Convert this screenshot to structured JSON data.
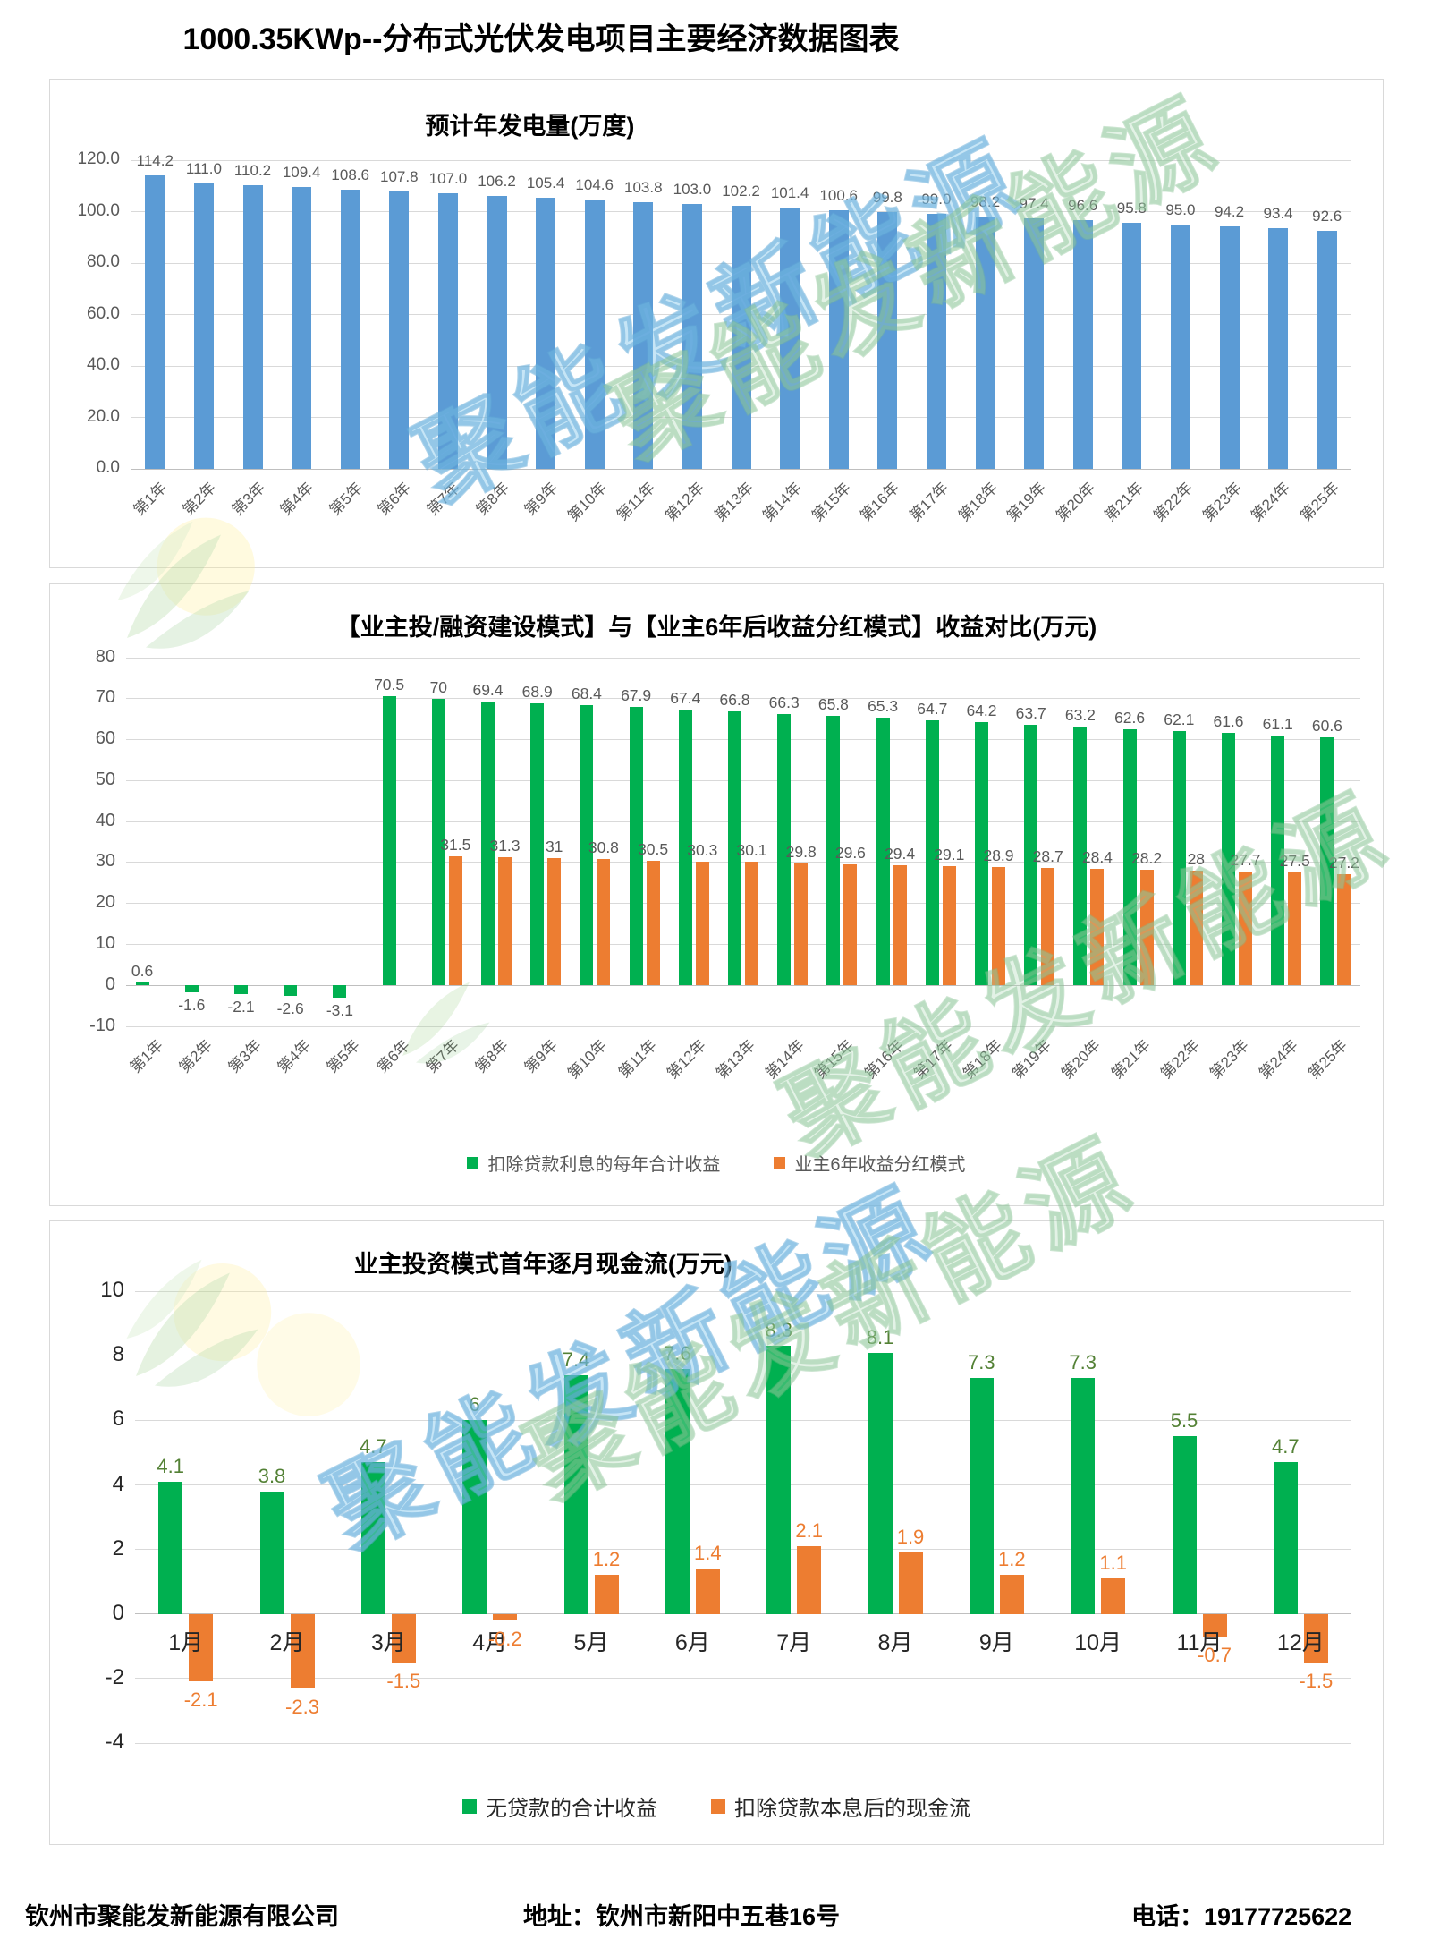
{
  "page": {
    "title": "1000.35KWp--分布式光伏发电项目主要经济数据图表",
    "watermark_text": "聚能发新能源",
    "footer": {
      "company": "钦州市聚能发新能源有限公司",
      "address": "地址：钦州市新阳中五巷16号",
      "phone": "电话：19177725622"
    }
  },
  "colors": {
    "blue_bar": "#5B9BD5",
    "green_bar": "#00B050",
    "orange_bar": "#ED7D31",
    "grid": "#D9D9D9",
    "axis": "#BFBFBF",
    "tick_text": "#595959",
    "dark_text": "#262626",
    "green_label": "#538135"
  },
  "chart_data": [
    {
      "type": "bar",
      "title": "预计年发电量(万度)",
      "xlabel": "",
      "ylabel": "",
      "grid": true,
      "legend": false,
      "categories": [
        "第1年",
        "第2年",
        "第3年",
        "第4年",
        "第5年",
        "第6年",
        "第7年",
        "第8年",
        "第9年",
        "第10年",
        "第11年",
        "第12年",
        "第13年",
        "第14年",
        "第15年",
        "第16年",
        "第17年",
        "第18年",
        "第19年",
        "第20年",
        "第21年",
        "第22年",
        "第23年",
        "第24年",
        "第25年"
      ],
      "values": [
        114.2,
        111.0,
        110.2,
        109.4,
        108.6,
        107.8,
        107.0,
        106.2,
        105.4,
        104.6,
        103.8,
        103.0,
        102.2,
        101.4,
        100.6,
        99.8,
        99.0,
        98.2,
        97.4,
        96.6,
        95.8,
        95.0,
        94.2,
        93.4,
        92.6
      ],
      "labels": [
        "114.2",
        "111.0",
        "110.2",
        "109.4",
        "108.6",
        "107.8",
        "107.0",
        "106.2",
        "105.4",
        "104.6",
        "103.8",
        "103.0",
        "102.2",
        "101.4",
        "100.6",
        "99.8",
        "99.0",
        "98.2",
        "97.4",
        "96.6",
        "95.8",
        "95.0",
        "94.2",
        "93.4",
        "92.6"
      ],
      "bar_color": "#5B9BD5",
      "ylim": [
        0,
        120
      ],
      "yticks": [
        "120.0",
        "100.0",
        "80.0",
        "60.0",
        "40.0",
        "20.0",
        "0.0"
      ]
    },
    {
      "type": "bar",
      "title": "【业主投/融资建设模式】与【业主6年后收益分红模式】收益对比(万元)",
      "xlabel": "",
      "ylabel": "",
      "grid": true,
      "legend_position": "bottom",
      "categories": [
        "第1年",
        "第2年",
        "第3年",
        "第4年",
        "第5年",
        "第6年",
        "第7年",
        "第8年",
        "第9年",
        "第10年",
        "第11年",
        "第12年",
        "第13年",
        "第14年",
        "第15年",
        "第16年",
        "第17年",
        "第18年",
        "第19年",
        "第20年",
        "第21年",
        "第22年",
        "第23年",
        "第24年",
        "第25年"
      ],
      "ylim": [
        -10,
        80
      ],
      "yticks": [
        "80",
        "70",
        "60",
        "50",
        "40",
        "30",
        "20",
        "10",
        "0",
        "-10"
      ],
      "series": [
        {
          "name": "扣除贷款利息的每年合计收益",
          "color": "#00B050",
          "values": [
            0.6,
            -1.6,
            -2.1,
            -2.6,
            -3.1,
            70.5,
            70,
            69.4,
            68.9,
            68.4,
            67.9,
            67.4,
            66.8,
            66.3,
            65.8,
            65.3,
            64.7,
            64.2,
            63.7,
            63.2,
            62.6,
            62.1,
            61.6,
            61.1,
            60.6
          ],
          "labels": [
            "0.6",
            "-1.6",
            "-2.1",
            "-2.6",
            "-3.1",
            "70.5",
            "70",
            "69.4",
            "68.9",
            "68.4",
            "67.9",
            "67.4",
            "66.8",
            "66.3",
            "65.8",
            "65.3",
            "64.7",
            "64.2",
            "63.7",
            "63.2",
            "62.6",
            "62.1",
            "61.6",
            "61.1",
            "60.6"
          ]
        },
        {
          "name": "业主6年收益分红模式",
          "color": "#ED7D31",
          "values": [
            null,
            null,
            null,
            null,
            null,
            null,
            31.5,
            31.3,
            31,
            30.8,
            30.5,
            30.3,
            30.1,
            29.8,
            29.6,
            29.4,
            29.1,
            28.9,
            28.7,
            28.4,
            28.2,
            28,
            27.7,
            27.5,
            27.2
          ],
          "labels": [
            "",
            "",
            "",
            "",
            "",
            "",
            "31.5",
            "31.3",
            "31",
            "30.8",
            "30.5",
            "30.3",
            "30.1",
            "29.8",
            "29.6",
            "29.4",
            "29.1",
            "28.9",
            "28.7",
            "28.4",
            "28.2",
            "28",
            "27.7",
            "27.5",
            "27.2"
          ]
        }
      ]
    },
    {
      "type": "bar",
      "title": "业主投资模式首年逐月现金流(万元)",
      "xlabel": "",
      "ylabel": "",
      "grid": true,
      "legend_position": "bottom",
      "categories": [
        "1月",
        "2月",
        "3月",
        "4月",
        "5月",
        "6月",
        "7月",
        "8月",
        "9月",
        "10月",
        "11月",
        "12月"
      ],
      "ylim": [
        -4,
        10
      ],
      "yticks": [
        "10",
        "8",
        "6",
        "4",
        "2",
        "0",
        "-2",
        "-4"
      ],
      "series": [
        {
          "name": "无贷款的合计收益",
          "color": "#00B050",
          "label_color": "#538135",
          "values": [
            4.1,
            3.8,
            4.7,
            6,
            7.4,
            7.6,
            8.3,
            8.1,
            7.3,
            7.3,
            5.5,
            4.7
          ],
          "labels": [
            "4.1",
            "3.8",
            "4.7",
            "6",
            "7.4",
            "7.6",
            "8.3",
            "8.1",
            "7.3",
            "7.3",
            "5.5",
            "4.7"
          ]
        },
        {
          "name": "扣除贷款本息后的现金流",
          "color": "#ED7D31",
          "label_color": "#ED7D31",
          "values": [
            -2.1,
            -2.3,
            -1.5,
            -0.2,
            1.2,
            1.4,
            2.1,
            1.9,
            1.2,
            1.1,
            -0.7,
            -1.5
          ],
          "labels": [
            "-2.1",
            "-2.3",
            "-1.5",
            "-0.2",
            "1.2",
            "1.4",
            "2.1",
            "1.9",
            "1.2",
            "1.1",
            "-0.7",
            "-1.5"
          ]
        }
      ]
    }
  ]
}
